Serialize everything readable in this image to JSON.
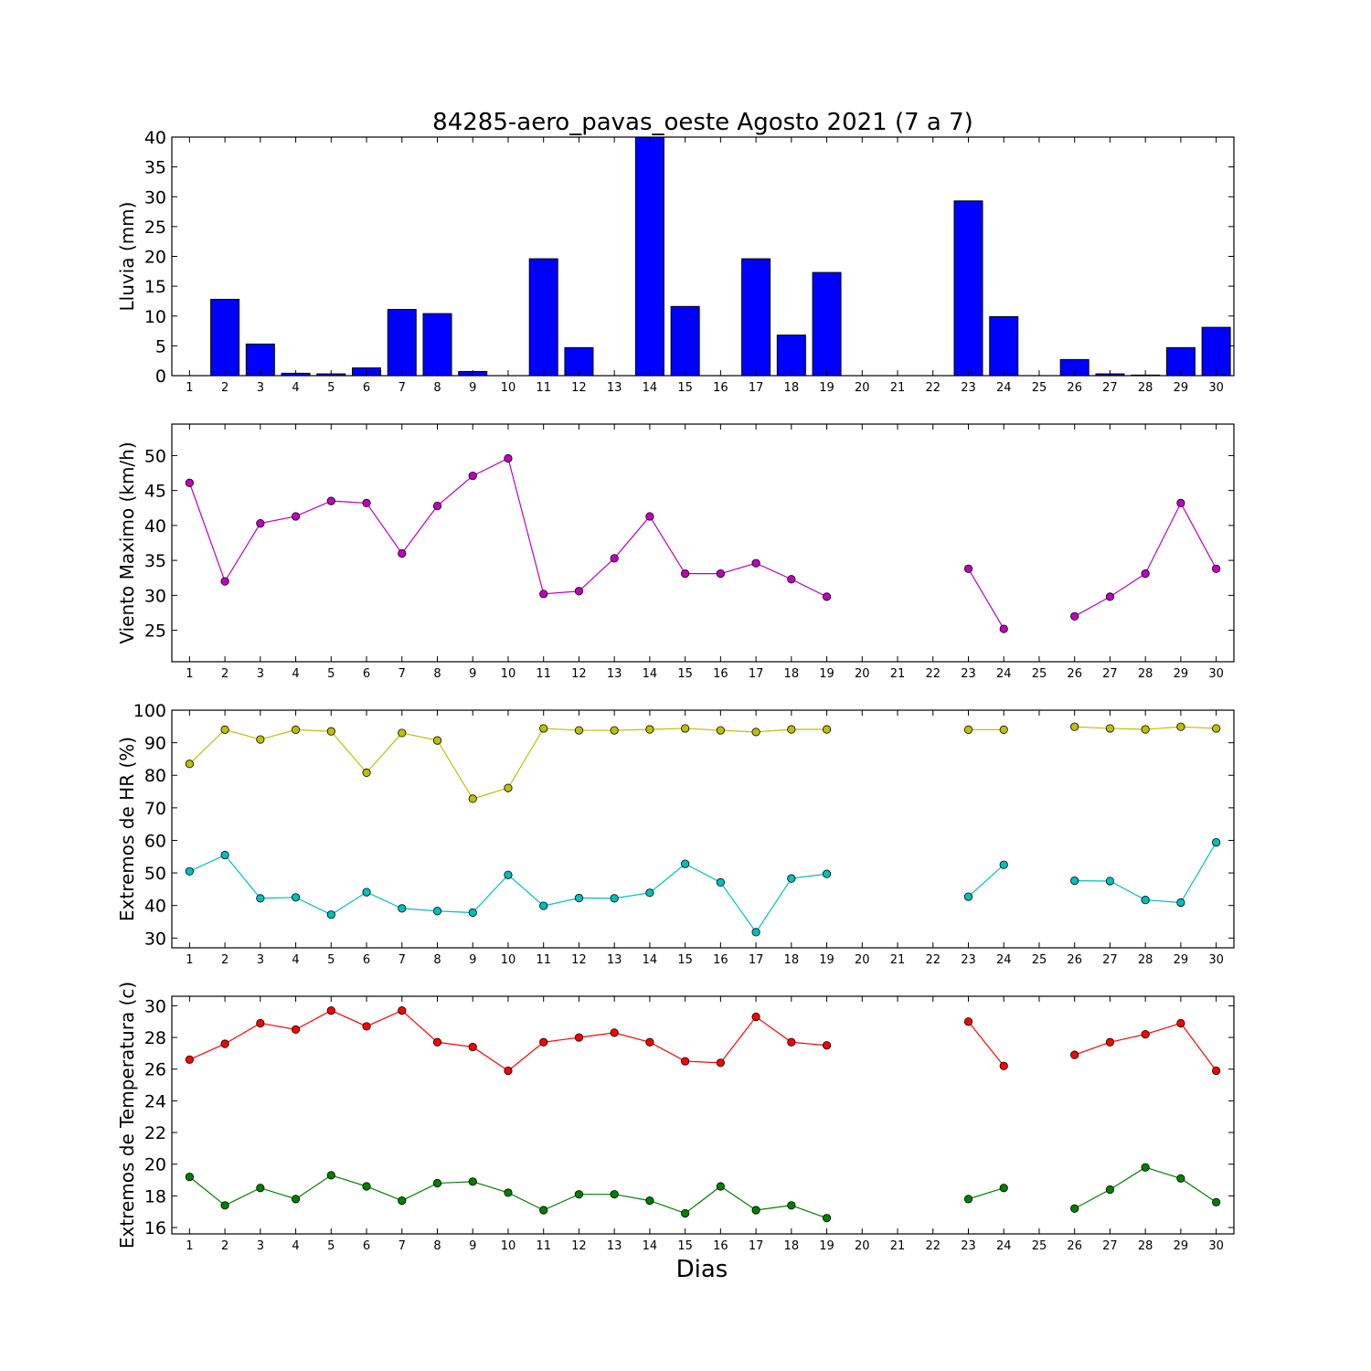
{
  "figure": {
    "title": "84285-aero_pavas_oeste Agosto 2021  (7 a 7)",
    "xlabel": "Dias"
  },
  "chart_data": [
    {
      "id": "lluvia",
      "type": "bar",
      "ylabel": "Lluvia (mm)",
      "ylim": [
        0,
        40
      ],
      "yticks": [
        0,
        5,
        10,
        15,
        20,
        25,
        30,
        35,
        40
      ],
      "x": [
        1,
        2,
        3,
        4,
        5,
        6,
        7,
        8,
        9,
        10,
        11,
        12,
        13,
        14,
        15,
        16,
        17,
        18,
        19,
        20,
        21,
        22,
        23,
        24,
        25,
        26,
        27,
        28,
        29,
        30
      ],
      "series": [
        {
          "color": "#0000ff",
          "values": [
            0,
            12.8,
            5.3,
            0.4,
            0.3,
            1.3,
            11.1,
            10.4,
            0.7,
            0,
            19.6,
            4.7,
            0,
            40.3,
            11.6,
            0,
            19.6,
            6.8,
            17.3,
            0,
            0,
            0,
            29.3,
            9.9,
            0,
            2.7,
            0.3,
            0.1,
            4.7,
            8.1
          ]
        }
      ],
      "grid": false
    },
    {
      "id": "viento",
      "type": "line",
      "ylabel": "Viento Maximo (km/h)",
      "ylim": [
        20.5,
        54.5
      ],
      "yticks": [
        25,
        30,
        35,
        40,
        45,
        50
      ],
      "x": [
        1,
        2,
        3,
        4,
        5,
        6,
        7,
        8,
        9,
        10,
        11,
        12,
        13,
        14,
        15,
        16,
        17,
        18,
        19,
        20,
        21,
        22,
        23,
        24,
        25,
        26,
        27,
        28,
        29,
        30
      ],
      "series": [
        {
          "color": "#bf00bf",
          "values": [
            46.1,
            32.0,
            40.3,
            41.3,
            43.5,
            43.2,
            36.0,
            42.8,
            47.1,
            49.6,
            30.2,
            30.6,
            35.3,
            41.3,
            33.1,
            33.1,
            34.6,
            32.3,
            29.8,
            null,
            null,
            null,
            33.8,
            25.2,
            null,
            27.0,
            29.8,
            33.1,
            43.2,
            33.8
          ]
        }
      ],
      "grid": false
    },
    {
      "id": "hr",
      "type": "line",
      "ylabel": "Extremos de HR (%)",
      "ylim": [
        27,
        100
      ],
      "yticks": [
        30,
        40,
        50,
        60,
        70,
        80,
        90,
        100
      ],
      "x": [
        1,
        2,
        3,
        4,
        5,
        6,
        7,
        8,
        9,
        10,
        11,
        12,
        13,
        14,
        15,
        16,
        17,
        18,
        19,
        20,
        21,
        22,
        23,
        24,
        25,
        26,
        27,
        28,
        29,
        30
      ],
      "series": [
        {
          "color": "#bfbf00",
          "values": [
            83.5,
            94.0,
            91.0,
            94.0,
            93.5,
            80.8,
            93.0,
            90.7,
            72.8,
            76.1,
            94.4,
            93.8,
            93.8,
            94.1,
            94.4,
            93.8,
            93.3,
            94.1,
            94.1,
            null,
            null,
            null,
            94.0,
            94.0,
            null,
            94.9,
            94.4,
            94.1,
            94.9,
            94.4
          ]
        },
        {
          "color": "#00bfbf",
          "values": [
            50.5,
            55.5,
            42.2,
            42.5,
            37.2,
            44.1,
            39.1,
            38.3,
            37.8,
            49.4,
            39.9,
            42.3,
            42.2,
            43.9,
            52.8,
            47.1,
            31.8,
            48.3,
            49.7,
            null,
            null,
            null,
            42.7,
            52.5,
            null,
            47.6,
            47.5,
            41.7,
            40.9,
            59.4
          ]
        }
      ],
      "grid": false
    },
    {
      "id": "temp",
      "type": "line",
      "ylabel": "Extremos de Temperatura (c)",
      "ylim": [
        15.6,
        30.6
      ],
      "yticks": [
        16,
        18,
        20,
        22,
        24,
        26,
        28,
        30
      ],
      "x": [
        1,
        2,
        3,
        4,
        5,
        6,
        7,
        8,
        9,
        10,
        11,
        12,
        13,
        14,
        15,
        16,
        17,
        18,
        19,
        20,
        21,
        22,
        23,
        24,
        25,
        26,
        27,
        28,
        29,
        30
      ],
      "series": [
        {
          "color": "#ff0000",
          "values": [
            26.6,
            27.6,
            28.9,
            28.5,
            29.7,
            28.7,
            29.7,
            27.7,
            27.4,
            25.9,
            27.7,
            28.0,
            28.3,
            27.7,
            26.5,
            26.4,
            29.3,
            27.7,
            27.5,
            null,
            null,
            null,
            29.0,
            26.2,
            null,
            26.9,
            27.7,
            28.2,
            28.9,
            25.9
          ]
        },
        {
          "color": "#008000",
          "values": [
            19.2,
            17.4,
            18.5,
            17.8,
            19.3,
            18.6,
            17.7,
            18.8,
            18.9,
            18.2,
            17.1,
            18.1,
            18.1,
            17.7,
            16.9,
            18.6,
            17.1,
            17.4,
            16.6,
            null,
            null,
            null,
            17.8,
            18.5,
            null,
            17.2,
            18.4,
            19.8,
            19.1,
            17.6
          ]
        }
      ],
      "grid": false
    }
  ]
}
